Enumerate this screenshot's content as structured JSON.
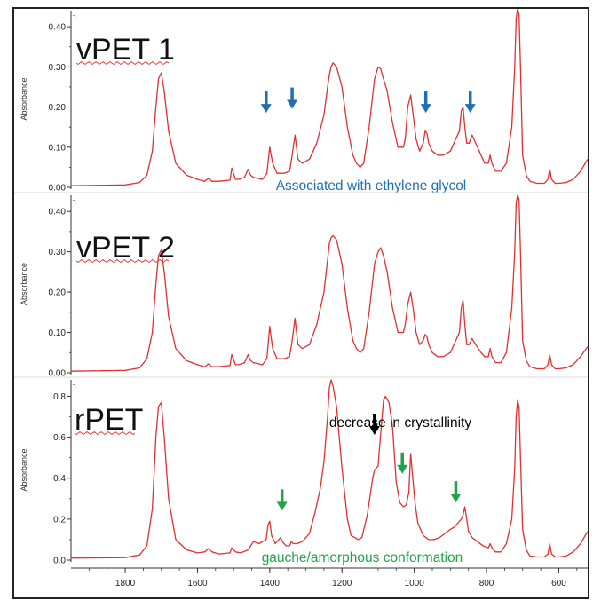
{
  "figure": {
    "x_ticks": [
      "1800",
      "1600",
      "1400",
      "1200",
      "1000",
      "800",
      "600"
    ],
    "ylabel": "Absorbance"
  },
  "chart_data": [
    {
      "type": "line",
      "title": "vPET 1",
      "ylabel": "Absorbance",
      "ylim": [
        0,
        0.44
      ],
      "y_ticks": [
        "0.00",
        "0.10",
        "0.20",
        "0.30",
        "0.40"
      ],
      "xlim": [
        1950,
        520
      ],
      "x_reversed": true,
      "line_color": "#e03030",
      "series": [
        {
          "x": [
            1950,
            1800,
            1760,
            1740,
            1725,
            1715,
            1708,
            1700,
            1692,
            1680,
            1660,
            1630,
            1600,
            1580,
            1570,
            1560,
            1540,
            1510,
            1505,
            1495,
            1485,
            1470,
            1460,
            1453,
            1445,
            1420,
            1408,
            1400,
            1392,
            1380,
            1360,
            1345,
            1338,
            1330,
            1322,
            1310,
            1290,
            1270,
            1250,
            1240,
            1235,
            1230,
            1225,
            1215,
            1200,
            1185,
            1170,
            1160,
            1150,
            1140,
            1125,
            1110,
            1100,
            1093,
            1085,
            1075,
            1060,
            1045,
            1030,
            1025,
            1018,
            1010,
            1003,
            995,
            985,
            975,
            970,
            965,
            960,
            950,
            935,
            920,
            900,
            885,
            875,
            870,
            865,
            860,
            855,
            848,
            840,
            830,
            815,
            805,
            795,
            790,
            785,
            775,
            760,
            745,
            730,
            722,
            718,
            714,
            710,
            706,
            700,
            690,
            680,
            660,
            640,
            630,
            625,
            620,
            610,
            600,
            580,
            560,
            540,
            520
          ],
          "y": [
            0.004,
            0.006,
            0.012,
            0.03,
            0.09,
            0.2,
            0.27,
            0.285,
            0.24,
            0.14,
            0.06,
            0.03,
            0.02,
            0.015,
            0.022,
            0.015,
            0.015,
            0.018,
            0.048,
            0.02,
            0.02,
            0.025,
            0.045,
            0.03,
            0.025,
            0.02,
            0.035,
            0.1,
            0.06,
            0.035,
            0.035,
            0.04,
            0.08,
            0.13,
            0.07,
            0.06,
            0.07,
            0.11,
            0.18,
            0.25,
            0.28,
            0.3,
            0.31,
            0.3,
            0.25,
            0.15,
            0.08,
            0.06,
            0.05,
            0.06,
            0.15,
            0.27,
            0.3,
            0.295,
            0.27,
            0.24,
            0.16,
            0.1,
            0.1,
            0.12,
            0.2,
            0.23,
            0.18,
            0.12,
            0.09,
            0.11,
            0.14,
            0.135,
            0.11,
            0.09,
            0.08,
            0.08,
            0.09,
            0.12,
            0.14,
            0.19,
            0.2,
            0.15,
            0.11,
            0.11,
            0.13,
            0.11,
            0.08,
            0.06,
            0.06,
            0.08,
            0.06,
            0.04,
            0.04,
            0.06,
            0.15,
            0.3,
            0.42,
            0.445,
            0.43,
            0.3,
            0.08,
            0.03,
            0.015,
            0.01,
            0.01,
            0.02,
            0.045,
            0.02,
            0.01,
            0.01,
            0.012,
            0.02,
            0.04,
            0.07
          ]
        }
      ],
      "annotations": [
        {
          "label": "Associated with ethylene glycol",
          "color": "#1f6fb4"
        }
      ],
      "arrows": [
        {
          "x": 1410,
          "y": 0.19,
          "color": "#1f6fb4"
        },
        {
          "x": 1338,
          "y": 0.2,
          "color": "#1f6fb4"
        },
        {
          "x": 968,
          "y": 0.19,
          "color": "#1f6fb4"
        },
        {
          "x": 845,
          "y": 0.19,
          "color": "#1f6fb4"
        }
      ]
    },
    {
      "type": "line",
      "title": "vPET 2",
      "ylabel": "Absorbance",
      "ylim": [
        0,
        0.44
      ],
      "y_ticks": [
        "0.00",
        "0.10",
        "0.20",
        "0.30",
        "0.40"
      ],
      "xlim": [
        1950,
        520
      ],
      "x_reversed": true,
      "line_color": "#e03030",
      "series": [
        {
          "x": [
            1950,
            1800,
            1760,
            1740,
            1725,
            1715,
            1708,
            1700,
            1692,
            1680,
            1660,
            1630,
            1600,
            1580,
            1570,
            1560,
            1540,
            1510,
            1505,
            1495,
            1485,
            1470,
            1460,
            1453,
            1445,
            1420,
            1408,
            1400,
            1392,
            1380,
            1360,
            1345,
            1338,
            1330,
            1322,
            1310,
            1290,
            1270,
            1250,
            1240,
            1235,
            1230,
            1225,
            1215,
            1200,
            1185,
            1170,
            1160,
            1150,
            1140,
            1125,
            1110,
            1100,
            1093,
            1085,
            1075,
            1060,
            1045,
            1030,
            1025,
            1018,
            1010,
            1003,
            995,
            985,
            975,
            970,
            965,
            960,
            950,
            935,
            920,
            900,
            885,
            875,
            870,
            865,
            860,
            855,
            848,
            840,
            830,
            815,
            805,
            795,
            790,
            785,
            775,
            760,
            745,
            730,
            722,
            718,
            714,
            710,
            706,
            700,
            690,
            680,
            660,
            640,
            630,
            625,
            620,
            610,
            600,
            580,
            560,
            540,
            520
          ],
          "y": [
            0.004,
            0.006,
            0.012,
            0.035,
            0.1,
            0.22,
            0.29,
            0.305,
            0.25,
            0.14,
            0.06,
            0.03,
            0.02,
            0.015,
            0.022,
            0.015,
            0.015,
            0.018,
            0.045,
            0.02,
            0.02,
            0.025,
            0.045,
            0.03,
            0.025,
            0.02,
            0.035,
            0.115,
            0.06,
            0.035,
            0.035,
            0.04,
            0.08,
            0.135,
            0.07,
            0.06,
            0.07,
            0.12,
            0.2,
            0.28,
            0.32,
            0.335,
            0.34,
            0.33,
            0.27,
            0.16,
            0.08,
            0.06,
            0.05,
            0.06,
            0.15,
            0.27,
            0.3,
            0.31,
            0.29,
            0.25,
            0.16,
            0.1,
            0.1,
            0.12,
            0.17,
            0.2,
            0.16,
            0.1,
            0.07,
            0.08,
            0.095,
            0.09,
            0.07,
            0.05,
            0.04,
            0.04,
            0.05,
            0.08,
            0.1,
            0.16,
            0.18,
            0.12,
            0.07,
            0.07,
            0.085,
            0.07,
            0.05,
            0.04,
            0.04,
            0.06,
            0.04,
            0.025,
            0.025,
            0.05,
            0.16,
            0.3,
            0.42,
            0.44,
            0.43,
            0.3,
            0.08,
            0.03,
            0.015,
            0.01,
            0.01,
            0.02,
            0.045,
            0.02,
            0.01,
            0.01,
            0.012,
            0.02,
            0.04,
            0.065
          ]
        }
      ]
    },
    {
      "type": "line",
      "title": "rPET",
      "ylabel": "Absorbance",
      "ylim": [
        0,
        0.88
      ],
      "y_ticks": [
        "0.0",
        "0.2",
        "0.4",
        "0.6",
        "0.8"
      ],
      "xlim": [
        1950,
        520
      ],
      "x_reversed": true,
      "line_color": "#e03030",
      "series": [
        {
          "x": [
            1950,
            1800,
            1760,
            1740,
            1725,
            1715,
            1708,
            1700,
            1692,
            1680,
            1660,
            1630,
            1610,
            1600,
            1580,
            1570,
            1560,
            1540,
            1510,
            1505,
            1495,
            1480,
            1460,
            1445,
            1430,
            1410,
            1405,
            1400,
            1395,
            1385,
            1375,
            1370,
            1365,
            1355,
            1345,
            1340,
            1335,
            1325,
            1310,
            1290,
            1275,
            1260,
            1250,
            1240,
            1235,
            1230,
            1225,
            1215,
            1200,
            1185,
            1175,
            1165,
            1155,
            1145,
            1130,
            1115,
            1110,
            1100,
            1090,
            1085,
            1080,
            1070,
            1060,
            1050,
            1040,
            1030,
            1022,
            1015,
            1010,
            1005,
            998,
            990,
            975,
            960,
            945,
            930,
            915,
            900,
            890,
            880,
            870,
            865,
            860,
            855,
            850,
            840,
            825,
            810,
            795,
            790,
            785,
            775,
            760,
            745,
            730,
            722,
            718,
            714,
            710,
            706,
            700,
            690,
            680,
            660,
            640,
            630,
            625,
            620,
            610,
            600,
            580,
            560,
            540,
            520
          ],
          "y": [
            0.01,
            0.012,
            0.025,
            0.07,
            0.25,
            0.6,
            0.75,
            0.77,
            0.6,
            0.3,
            0.1,
            0.05,
            0.04,
            0.035,
            0.04,
            0.055,
            0.04,
            0.03,
            0.035,
            0.06,
            0.04,
            0.035,
            0.05,
            0.09,
            0.08,
            0.1,
            0.17,
            0.19,
            0.12,
            0.08,
            0.1,
            0.11,
            0.09,
            0.07,
            0.07,
            0.09,
            0.08,
            0.08,
            0.09,
            0.13,
            0.23,
            0.35,
            0.48,
            0.7,
            0.84,
            0.88,
            0.85,
            0.75,
            0.45,
            0.2,
            0.12,
            0.11,
            0.1,
            0.11,
            0.22,
            0.4,
            0.44,
            0.46,
            0.68,
            0.78,
            0.8,
            0.77,
            0.65,
            0.38,
            0.28,
            0.26,
            0.27,
            0.33,
            0.52,
            0.42,
            0.28,
            0.18,
            0.12,
            0.1,
            0.1,
            0.11,
            0.13,
            0.15,
            0.16,
            0.18,
            0.2,
            0.22,
            0.26,
            0.2,
            0.14,
            0.11,
            0.09,
            0.07,
            0.06,
            0.08,
            0.06,
            0.04,
            0.04,
            0.08,
            0.2,
            0.45,
            0.7,
            0.78,
            0.75,
            0.5,
            0.15,
            0.05,
            0.02,
            0.015,
            0.015,
            0.03,
            0.08,
            0.03,
            0.015,
            0.015,
            0.02,
            0.04,
            0.08,
            0.14
          ]
        }
      ],
      "annotations": [
        {
          "label": "decrease in crystallinity",
          "color": "#000000"
        },
        {
          "label": "gauche/amorphous conformation",
          "color": "#22a34a"
        }
      ],
      "arrows": [
        {
          "x": 1110,
          "y": 0.62,
          "color": "#000000"
        },
        {
          "x": 1033,
          "y": 0.43,
          "color": "#22a34a"
        },
        {
          "x": 1366,
          "y": 0.25,
          "color": "#22a34a"
        },
        {
          "x": 885,
          "y": 0.29,
          "color": "#22a34a"
        }
      ]
    }
  ]
}
